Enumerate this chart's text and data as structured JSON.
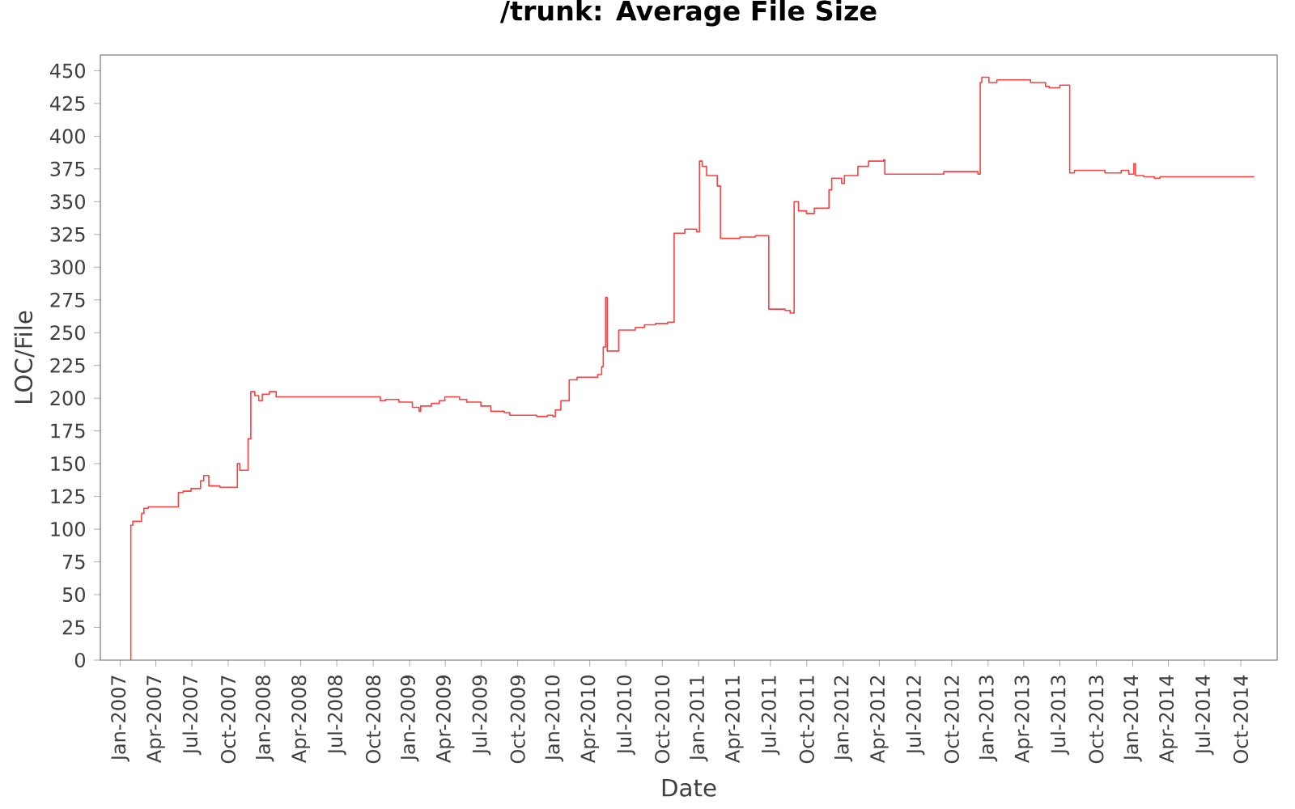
{
  "chart_data": {
    "type": "step",
    "title": "/trunk: Average File Size",
    "xlabel": "Date",
    "ylabel": "LOC/File",
    "x": [
      "2007-01-27",
      "2007-01-28",
      "2007-02-02",
      "2007-02-24",
      "2007-03-02",
      "2007-03-13",
      "2007-05-28",
      "2007-06-09",
      "2007-06-29",
      "2007-07-23",
      "2007-07-31",
      "2007-08-13",
      "2007-09-10",
      "2007-10-24",
      "2007-10-30",
      "2007-11-20",
      "2007-11-27",
      "2007-12-07",
      "2007-12-17",
      "2007-12-26",
      "2008-01-13",
      "2008-01-30",
      "2008-10-19",
      "2008-11-01",
      "2008-12-05",
      "2009-01-08",
      "2009-01-25",
      "2009-01-29",
      "2009-02-25",
      "2009-03-17",
      "2009-03-31",
      "2009-05-07",
      "2009-05-25",
      "2009-06-30",
      "2009-07-25",
      "2009-08-28",
      "2009-09-11",
      "2009-11-18",
      "2009-12-15",
      "2009-12-29",
      "2010-01-04",
      "2010-01-18",
      "2010-02-08",
      "2010-02-28",
      "2010-04-21",
      "2010-05-01",
      "2010-05-05",
      "2010-05-11",
      "2010-05-15",
      "2010-06-13",
      "2010-07-25",
      "2010-08-17",
      "2010-09-14",
      "2010-10-15",
      "2010-10-31",
      "2010-11-27",
      "2010-12-27",
      "2011-01-03",
      "2011-01-10",
      "2011-01-21",
      "2011-02-17",
      "2011-02-25",
      "2011-04-15",
      "2011-05-24",
      "2011-06-27",
      "2011-08-07",
      "2011-08-20",
      "2011-08-30",
      "2011-09-10",
      "2011-09-30",
      "2011-10-20",
      "2011-11-26",
      "2011-12-03",
      "2011-12-28",
      "2012-01-04",
      "2012-02-07",
      "2012-03-05",
      "2012-04-12",
      "2012-04-15",
      "2012-09-11",
      "2012-12-06",
      "2012-12-12",
      "2012-12-16",
      "2013-01-03",
      "2013-01-23",
      "2013-04-18",
      "2013-05-26",
      "2013-06-04",
      "2013-07-01",
      "2013-07-26",
      "2013-08-07",
      "2013-09-28",
      "2013-10-23",
      "2013-12-03",
      "2013-12-22",
      "2014-01-04",
      "2014-01-08",
      "2014-01-29",
      "2014-02-25",
      "2014-03-11",
      "2014-11-04"
    ],
    "values": [
      0,
      103,
      106,
      112,
      116,
      117,
      128,
      129,
      131,
      137,
      141,
      133,
      132,
      150,
      145,
      169,
      205,
      202,
      198,
      203,
      205,
      201,
      198,
      199,
      197,
      193,
      190,
      194,
      196,
      198,
      201,
      199,
      197,
      194,
      190,
      189,
      187,
      186,
      187,
      186,
      191,
      198,
      214,
      216,
      218,
      224,
      239,
      277,
      236,
      252,
      254,
      256,
      257,
      258,
      326,
      329,
      327,
      381,
      377,
      370,
      362,
      322,
      323,
      324,
      268,
      267,
      265,
      350,
      343,
      341,
      345,
      359,
      368,
      364,
      370,
      377,
      381,
      382,
      371,
      373,
      371,
      441,
      445,
      441,
      443,
      441,
      438,
      437,
      439,
      372,
      374,
      374,
      372,
      374,
      371,
      379,
      370,
      369,
      368,
      369,
      369
    ],
    "color": "#ff4040",
    "xlim": [
      "2006-11-12",
      "2015-01-01"
    ],
    "xticks": [
      {
        "value": "2007-01-01",
        "label": "Jan-2007"
      },
      {
        "value": "2007-04-01",
        "label": "Apr-2007"
      },
      {
        "value": "2007-07-01",
        "label": "Jul-2007"
      },
      {
        "value": "2007-10-01",
        "label": "Oct-2007"
      },
      {
        "value": "2008-01-01",
        "label": "Jan-2008"
      },
      {
        "value": "2008-04-01",
        "label": "Apr-2008"
      },
      {
        "value": "2008-07-01",
        "label": "Jul-2008"
      },
      {
        "value": "2008-10-01",
        "label": "Oct-2008"
      },
      {
        "value": "2009-01-01",
        "label": "Jan-2009"
      },
      {
        "value": "2009-04-01",
        "label": "Apr-2009"
      },
      {
        "value": "2009-07-01",
        "label": "Jul-2009"
      },
      {
        "value": "2009-10-01",
        "label": "Oct-2009"
      },
      {
        "value": "2010-01-01",
        "label": "Jan-2010"
      },
      {
        "value": "2010-04-01",
        "label": "Apr-2010"
      },
      {
        "value": "2010-07-01",
        "label": "Jul-2010"
      },
      {
        "value": "2010-10-01",
        "label": "Oct-2010"
      },
      {
        "value": "2011-01-01",
        "label": "Jan-2011"
      },
      {
        "value": "2011-04-01",
        "label": "Apr-2011"
      },
      {
        "value": "2011-07-01",
        "label": "Jul-2011"
      },
      {
        "value": "2011-10-01",
        "label": "Oct-2011"
      },
      {
        "value": "2012-01-01",
        "label": "Jan-2012"
      },
      {
        "value": "2012-04-01",
        "label": "Apr-2012"
      },
      {
        "value": "2012-07-01",
        "label": "Jul-2012"
      },
      {
        "value": "2012-10-01",
        "label": "Oct-2012"
      },
      {
        "value": "2013-01-01",
        "label": "Jan-2013"
      },
      {
        "value": "2013-04-01",
        "label": "Apr-2013"
      },
      {
        "value": "2013-07-01",
        "label": "Jul-2013"
      },
      {
        "value": "2013-10-01",
        "label": "Oct-2013"
      },
      {
        "value": "2014-01-01",
        "label": "Jan-2014"
      },
      {
        "value": "2014-04-01",
        "label": "Apr-2014"
      },
      {
        "value": "2014-07-01",
        "label": "Jul-2014"
      },
      {
        "value": "2014-10-01",
        "label": "Oct-2014"
      }
    ],
    "ylim": [
      0,
      462
    ],
    "yticks": [
      0,
      25,
      50,
      75,
      100,
      125,
      150,
      175,
      200,
      225,
      250,
      275,
      300,
      325,
      350,
      375,
      400,
      425,
      450
    ],
    "grid": false,
    "marker": "none",
    "line_style": "solid"
  }
}
